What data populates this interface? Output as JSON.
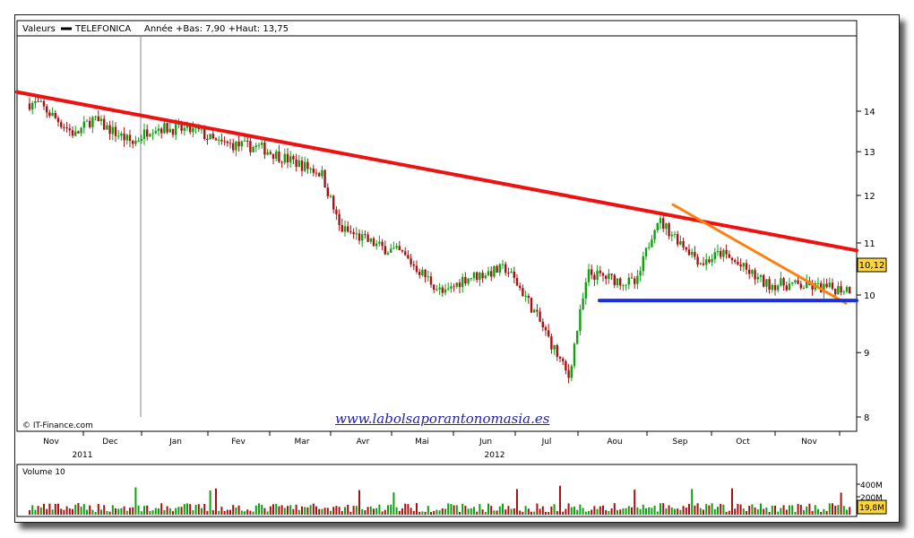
{
  "header": {
    "label": "Valeurs",
    "legend_name": "TELEFONICA",
    "range_text": "Année +Bas: 7,90 +Haut: 13,75"
  },
  "copyright": "© IT-Finance.com",
  "watermark": "www.labolsaporantonomasia.es",
  "colors": {
    "up": "#10a010",
    "down": "#aa1111",
    "resistance": "#ee1111",
    "short_trend": "#ff8010",
    "support": "#1a30e0"
  },
  "chart_data": [
    {
      "type": "candlestick",
      "series_name": "TELEFONICA",
      "x_ticks": [
        "Nov",
        "Dec",
        "Jan",
        "Fev",
        "Mar",
        "Avr",
        "Mai",
        "Jun",
        "Jul",
        "Aou",
        "Sep",
        "Oct",
        "Nov"
      ],
      "year_labels": [
        "2011",
        "2012"
      ],
      "y_ticks": [
        8,
        9,
        10,
        11,
        12,
        13,
        14
      ],
      "y_scale": "log",
      "ylim": [
        7.8,
        15.2
      ],
      "last_value": "10,12",
      "close_path": [
        [
          "Nov",
          14.2
        ],
        [
          "Nov",
          13.4
        ],
        [
          "Dec",
          13.8
        ],
        [
          "Dec",
          13.2
        ],
        [
          "Jan",
          13.6
        ],
        [
          "Jan",
          13.5
        ],
        [
          "Fev",
          13.2
        ],
        [
          "Fev",
          13.1
        ],
        [
          "Mar",
          12.9
        ],
        [
          "Mar",
          12.5
        ],
        [
          "Avr",
          11.3
        ],
        [
          "Avr",
          10.9
        ],
        [
          "Mai",
          10.8
        ],
        [
          "Mai",
          10.0
        ],
        [
          "Jun",
          10.3
        ],
        [
          "Jun",
          10.5
        ],
        [
          "Jul",
          10.0
        ],
        [
          "Jul",
          8.6
        ],
        [
          "Aou",
          10.4
        ],
        [
          "Aou",
          10.2
        ],
        [
          "Sep",
          11.5
        ],
        [
          "Sep",
          10.6
        ],
        [
          "Oct",
          10.8
        ],
        [
          "Oct",
          10.2
        ],
        [
          "Nov",
          10.2
        ],
        [
          "Nov",
          10.12
        ]
      ],
      "trendlines": [
        {
          "name": "resistance",
          "from": [
            "Nov",
            14.5
          ],
          "to": [
            "Nov",
            10.85
          ]
        },
        {
          "name": "short-term resistance",
          "from": [
            "Sep",
            11.8
          ],
          "to": [
            "Nov",
            9.85
          ]
        },
        {
          "name": "support",
          "from": [
            "Aou",
            9.9
          ],
          "to": [
            "Nov",
            9.9
          ]
        }
      ]
    },
    {
      "type": "bar",
      "title": "Volume 10",
      "y_ticks": [
        "200M",
        "400M"
      ],
      "last_value": "19,8M"
    }
  ]
}
